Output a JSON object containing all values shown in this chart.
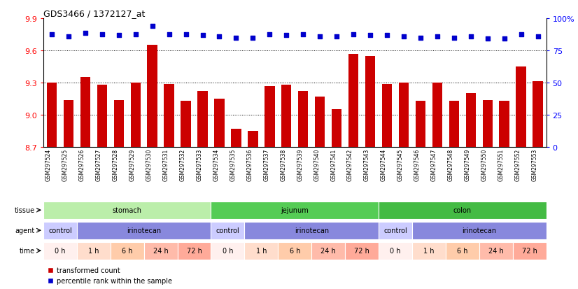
{
  "title": "GDS3466 / 1372127_at",
  "samples": [
    "GSM297524",
    "GSM297525",
    "GSM297526",
    "GSM297527",
    "GSM297528",
    "GSM297529",
    "GSM297530",
    "GSM297531",
    "GSM297532",
    "GSM297533",
    "GSM297534",
    "GSM297535",
    "GSM297536",
    "GSM297537",
    "GSM297538",
    "GSM297539",
    "GSM297540",
    "GSM297541",
    "GSM297542",
    "GSM297543",
    "GSM297544",
    "GSM297545",
    "GSM297546",
    "GSM297547",
    "GSM297548",
    "GSM297549",
    "GSM297550",
    "GSM297551",
    "GSM297552",
    "GSM297553"
  ],
  "bar_values": [
    9.3,
    9.14,
    9.35,
    9.28,
    9.14,
    9.3,
    9.65,
    9.29,
    9.13,
    9.22,
    9.15,
    8.87,
    8.85,
    9.27,
    9.28,
    9.22,
    9.17,
    9.05,
    9.57,
    9.55,
    9.29,
    9.3,
    9.13,
    9.3,
    9.13,
    9.2,
    9.14,
    9.13,
    9.45,
    9.31
  ],
  "percentile_values": [
    9.75,
    9.73,
    9.76,
    9.75,
    9.74,
    9.75,
    9.83,
    9.75,
    9.75,
    9.74,
    9.73,
    9.72,
    9.72,
    9.75,
    9.74,
    9.75,
    9.73,
    9.73,
    9.75,
    9.74,
    9.74,
    9.73,
    9.72,
    9.73,
    9.72,
    9.73,
    9.71,
    9.71,
    9.75,
    9.73
  ],
  "ylim": [
    8.7,
    9.9
  ],
  "yticks_left": [
    8.7,
    9.0,
    9.3,
    9.6,
    9.9
  ],
  "yticks_right": [
    0,
    25,
    50,
    75,
    100
  ],
  "bar_color": "#cc0000",
  "dot_color": "#0000cc",
  "tissue_groups": [
    {
      "label": "stomach",
      "start": 0,
      "end": 10,
      "color": "#bbeeaa"
    },
    {
      "label": "jejunum",
      "start": 10,
      "end": 20,
      "color": "#55cc55"
    },
    {
      "label": "colon",
      "start": 20,
      "end": 30,
      "color": "#44bb44"
    }
  ],
  "agent_groups": [
    {
      "label": "control",
      "start": 0,
      "end": 2,
      "color": "#ccccff"
    },
    {
      "label": "irinotecan",
      "start": 2,
      "end": 10,
      "color": "#8888dd"
    },
    {
      "label": "control",
      "start": 10,
      "end": 12,
      "color": "#ccccff"
    },
    {
      "label": "irinotecan",
      "start": 12,
      "end": 20,
      "color": "#8888dd"
    },
    {
      "label": "control",
      "start": 20,
      "end": 22,
      "color": "#ccccff"
    },
    {
      "label": "irinotecan",
      "start": 22,
      "end": 30,
      "color": "#8888dd"
    }
  ],
  "time_groups": [
    {
      "label": "0 h",
      "start": 0,
      "end": 2,
      "color": "#fff0ee"
    },
    {
      "label": "1 h",
      "start": 2,
      "end": 4,
      "color": "#ffddcc"
    },
    {
      "label": "6 h",
      "start": 4,
      "end": 6,
      "color": "#ffccaa"
    },
    {
      "label": "24 h",
      "start": 6,
      "end": 8,
      "color": "#ffbbaa"
    },
    {
      "label": "72 h",
      "start": 8,
      "end": 10,
      "color": "#ffaa99"
    },
    {
      "label": "0 h",
      "start": 10,
      "end": 12,
      "color": "#fff0ee"
    },
    {
      "label": "1 h",
      "start": 12,
      "end": 14,
      "color": "#ffddcc"
    },
    {
      "label": "6 h",
      "start": 14,
      "end": 16,
      "color": "#ffccaa"
    },
    {
      "label": "24 h",
      "start": 16,
      "end": 18,
      "color": "#ffbbaa"
    },
    {
      "label": "72 h",
      "start": 18,
      "end": 20,
      "color": "#ffaa99"
    },
    {
      "label": "0 h",
      "start": 20,
      "end": 22,
      "color": "#fff0ee"
    },
    {
      "label": "1 h",
      "start": 22,
      "end": 24,
      "color": "#ffddcc"
    },
    {
      "label": "6 h",
      "start": 24,
      "end": 26,
      "color": "#ffccaa"
    },
    {
      "label": "24 h",
      "start": 26,
      "end": 28,
      "color": "#ffbbaa"
    },
    {
      "label": "72 h",
      "start": 28,
      "end": 30,
      "color": "#ffaa99"
    }
  ],
  "legend_items": [
    {
      "label": "transformed count",
      "color": "#cc0000"
    },
    {
      "label": "percentile rank within the sample",
      "color": "#0000cc"
    }
  ],
  "fig_width": 8.26,
  "fig_height": 4.14,
  "dpi": 100
}
